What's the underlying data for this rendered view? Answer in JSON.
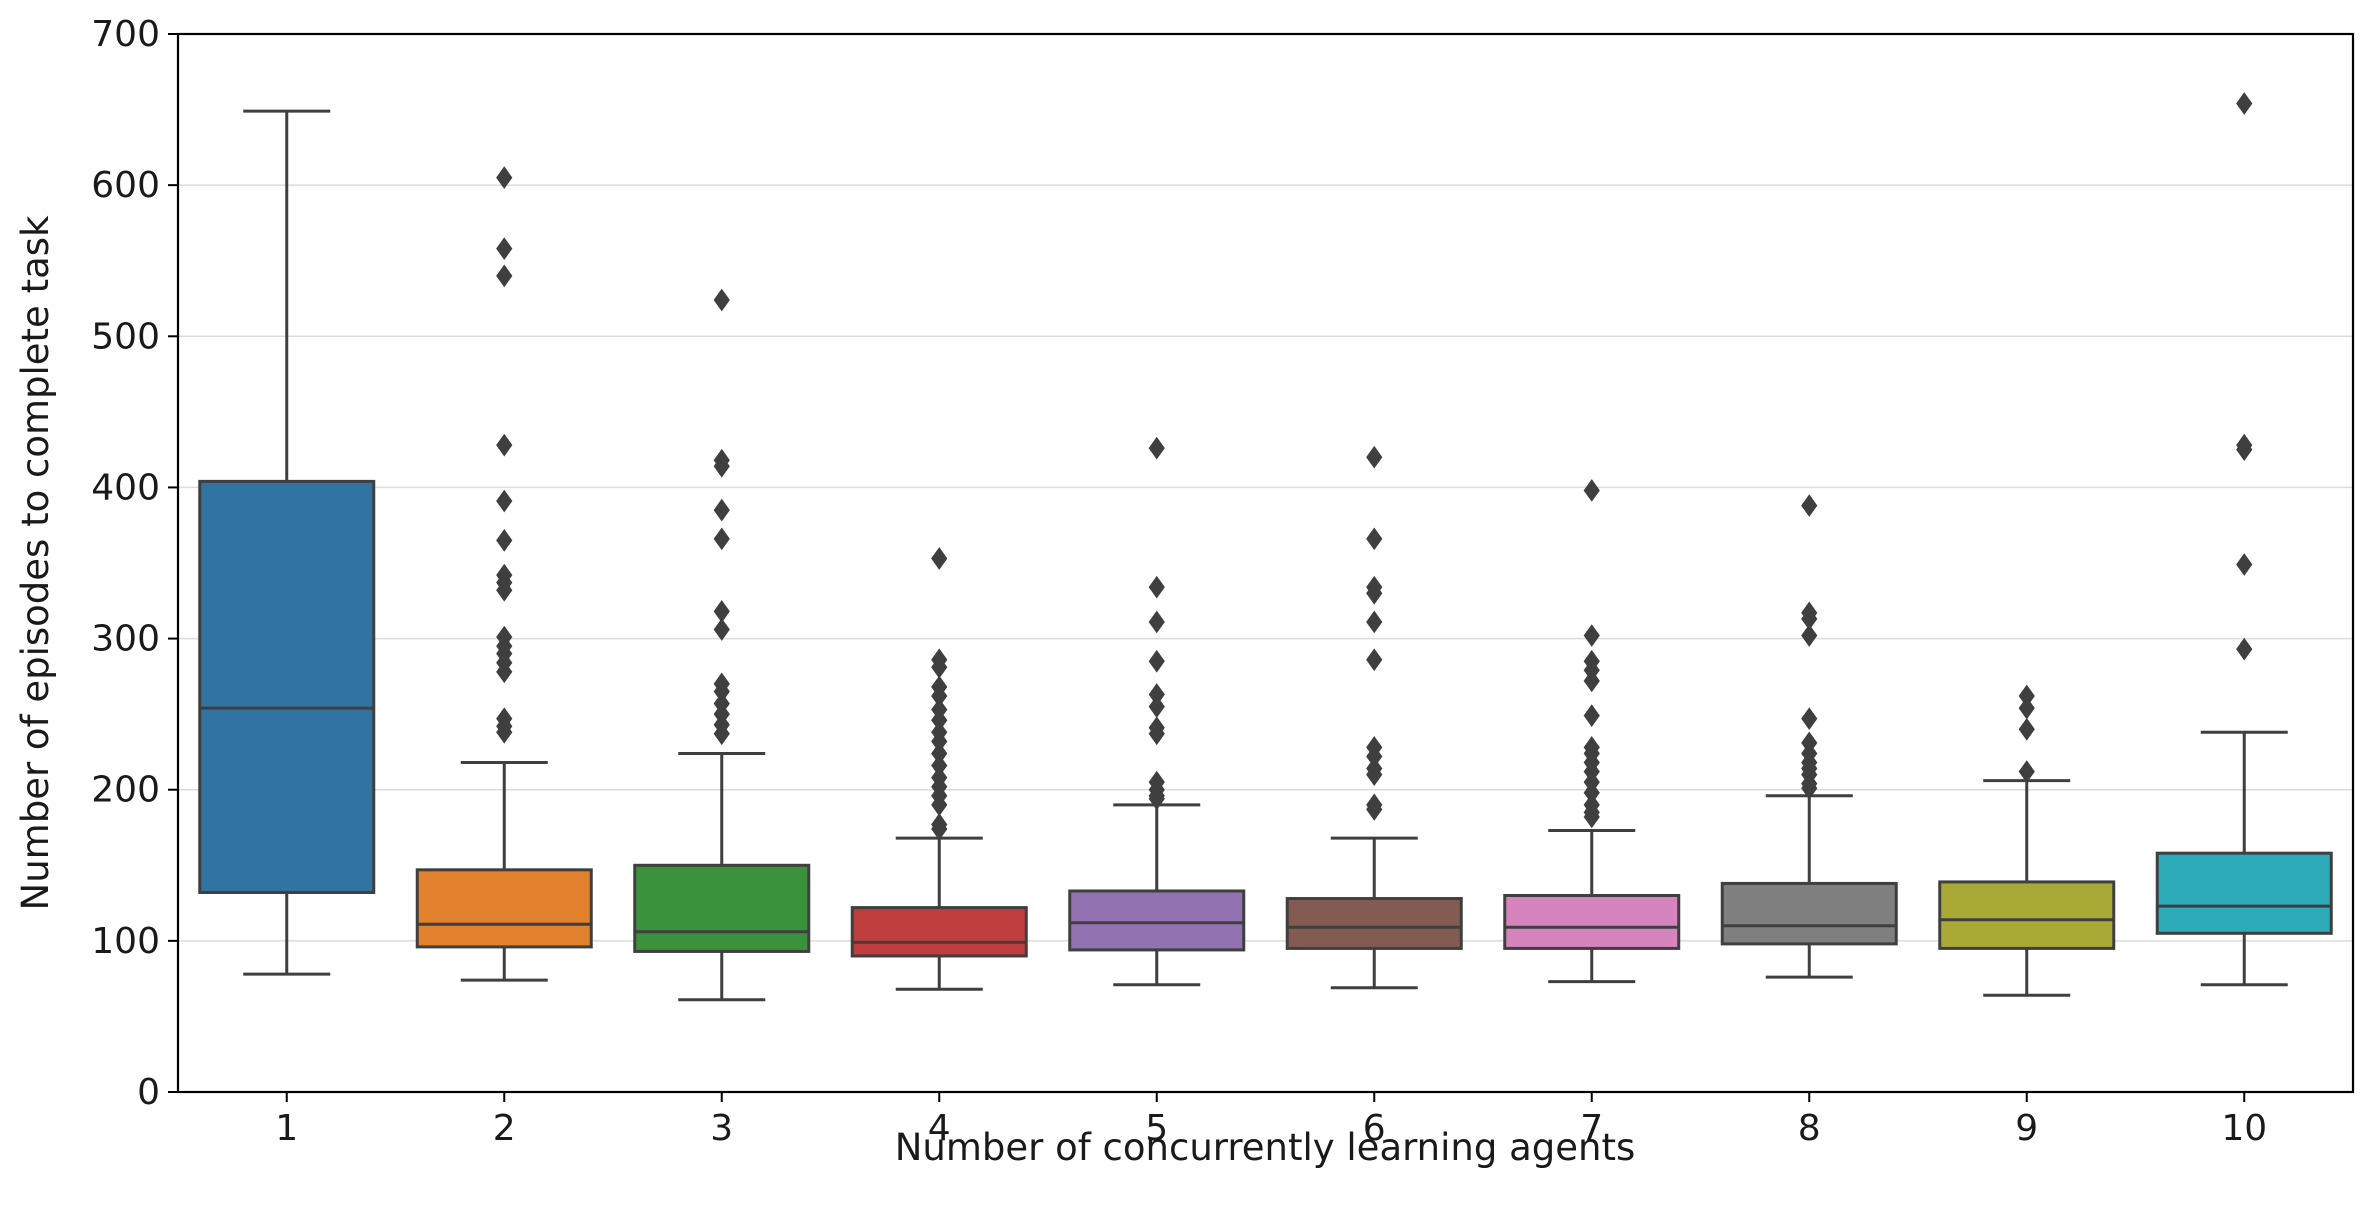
{
  "chart_data": {
    "type": "box",
    "xlabel": "Number of concurrently learning agents",
    "ylabel": "Number of episodes to complete task",
    "ylim": [
      0,
      700
    ],
    "yticks": [
      0,
      100,
      200,
      300,
      400,
      500,
      600,
      700
    ],
    "grid": "horizontal",
    "categories": [
      "1",
      "2",
      "3",
      "4",
      "5",
      "6",
      "7",
      "8",
      "9",
      "10"
    ],
    "boxes": [
      {
        "category": "1",
        "color": "#3274a1",
        "whisker_low": 78,
        "q1": 132,
        "median": 254,
        "q3": 404,
        "whisker_high": 649,
        "outliers": []
      },
      {
        "category": "2",
        "color": "#e1812c",
        "whisker_low": 74,
        "q1": 96,
        "median": 111,
        "q3": 147,
        "whisker_high": 218,
        "outliers": [
          605,
          558,
          540,
          428,
          391,
          365,
          342,
          337,
          332,
          301,
          295,
          290,
          284,
          278,
          247,
          242,
          238
        ]
      },
      {
        "category": "3",
        "color": "#3a923a",
        "whisker_low": 61,
        "q1": 93,
        "median": 106,
        "q3": 150,
        "whisker_high": 224,
        "outliers": [
          524,
          418,
          414,
          385,
          366,
          318,
          306,
          270,
          265,
          257,
          250,
          243,
          237
        ]
      },
      {
        "category": "4",
        "color": "#c03d3e",
        "whisker_low": 68,
        "q1": 90,
        "median": 99,
        "q3": 122,
        "whisker_high": 168,
        "outliers": [
          353,
          286,
          281,
          268,
          262,
          253,
          246,
          238,
          232,
          224,
          216,
          208,
          202,
          196,
          190,
          177,
          174
        ]
      },
      {
        "category": "5",
        "color": "#9372b2",
        "whisker_low": 71,
        "q1": 94,
        "median": 112,
        "q3": 133,
        "whisker_high": 190,
        "outliers": [
          426,
          334,
          311,
          285,
          263,
          255,
          241,
          237,
          205,
          200,
          196,
          194
        ]
      },
      {
        "category": "6",
        "color": "#845b53",
        "whisker_low": 69,
        "q1": 95,
        "median": 109,
        "q3": 128,
        "whisker_high": 168,
        "outliers": [
          420,
          366,
          334,
          330,
          311,
          286,
          228,
          222,
          214,
          210,
          190,
          187
        ]
      },
      {
        "category": "7",
        "color": "#d684bd",
        "whisker_low": 73,
        "q1": 95,
        "median": 109,
        "q3": 130,
        "whisker_high": 173,
        "outliers": [
          398,
          302,
          285,
          279,
          272,
          249,
          228,
          224,
          218,
          212,
          205,
          198,
          190,
          185,
          182
        ]
      },
      {
        "category": "8",
        "color": "#7f7f7f",
        "whisker_low": 76,
        "q1": 98,
        "median": 110,
        "q3": 138,
        "whisker_high": 196,
        "outliers": [
          388,
          317,
          313,
          302,
          247,
          231,
          224,
          218,
          214,
          210,
          204,
          201
        ]
      },
      {
        "category": "9",
        "color": "#a9aa35",
        "whisker_low": 64,
        "q1": 95,
        "median": 114,
        "q3": 139,
        "whisker_high": 206,
        "outliers": [
          262,
          254,
          240,
          212
        ]
      },
      {
        "category": "10",
        "color": "#2eabb8",
        "whisker_low": 71,
        "q1": 105,
        "median": 123,
        "q3": 158,
        "whisker_high": 238,
        "outliers": [
          654,
          428,
          425,
          349,
          293
        ]
      }
    ]
  }
}
